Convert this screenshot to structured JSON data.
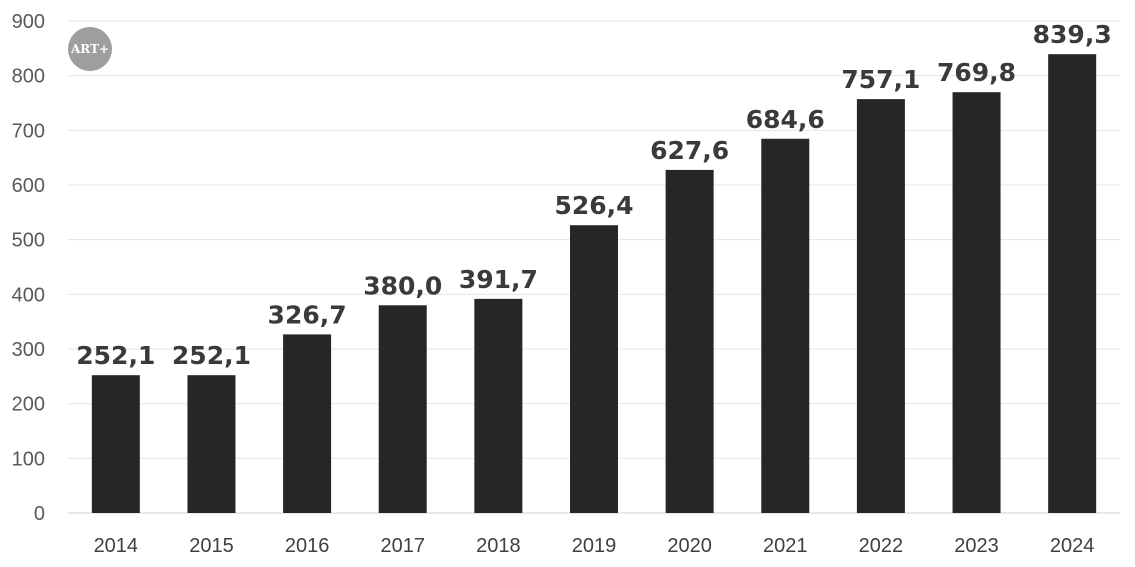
{
  "logo": {
    "text": "ART+",
    "bg_color": "#9e9e9e"
  },
  "chart_data": {
    "type": "bar",
    "categories": [
      "2014",
      "2015",
      "2016",
      "2017",
      "2018",
      "2019",
      "2020",
      "2021",
      "2022",
      "2023",
      "2024"
    ],
    "values": [
      252.1,
      252.1,
      326.7,
      380.0,
      391.7,
      526.4,
      627.6,
      684.6,
      757.1,
      769.8,
      839.3
    ],
    "data_labels": [
      "252,1",
      "252,1",
      "326,7",
      "380,0",
      "391,7",
      "526,4",
      "627,6",
      "684,6",
      "757,1",
      "769,8",
      "839,3"
    ],
    "y_ticks": [
      "0",
      "100",
      "200",
      "300",
      "400",
      "500",
      "600",
      "700",
      "800",
      "900"
    ],
    "ylim": [
      0,
      900
    ],
    "title": "",
    "xlabel": "",
    "ylabel": "",
    "grid": true,
    "legend": "none",
    "bar_color": "#262626",
    "grid_color": "#e6e6e6"
  }
}
